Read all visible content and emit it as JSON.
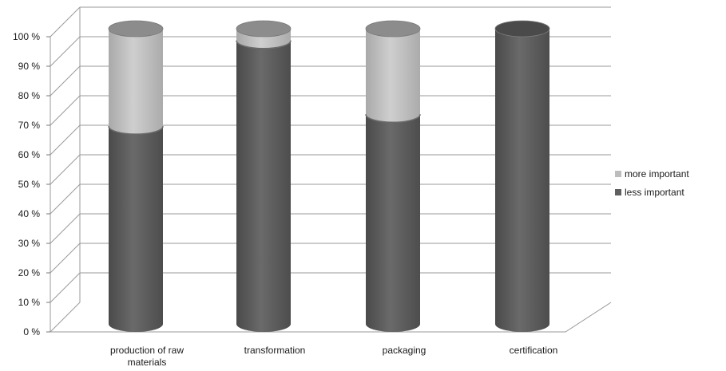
{
  "chart_data": {
    "type": "bar",
    "stacked": true,
    "percent": true,
    "three_d": true,
    "categories": [
      [
        "production of raw",
        "materials"
      ],
      [
        "transformation"
      ],
      [
        "packaging"
      ],
      [
        "certification"
      ]
    ],
    "series": [
      {
        "name": "less important",
        "values": [
          67,
          96,
          71,
          100
        ],
        "color": "#5f5f5f"
      },
      {
        "name": "more important",
        "values": [
          33,
          4,
          29,
          0
        ],
        "color": "#bdbdbd"
      }
    ],
    "y_ticks": [
      "0 %",
      "10 %",
      "20 %",
      "30 %",
      "40 %",
      "50 %",
      "60 %",
      "70 %",
      "80 %",
      "90 %",
      "100 %"
    ],
    "ylim": [
      0,
      100
    ],
    "grid": true,
    "legend_position": "right"
  }
}
